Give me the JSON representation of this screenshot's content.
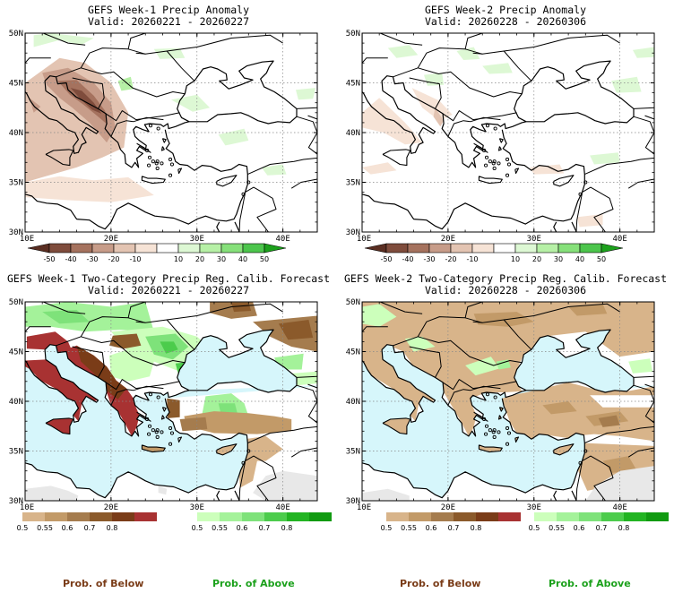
{
  "panels": [
    {
      "title": "GEFS Week-1 Precip Anomaly",
      "valid": "Valid: 20260221 - 20260227",
      "kind": "anomaly",
      "lat_labels": [
        "50N",
        "45N",
        "40N",
        "35N",
        "30N"
      ],
      "lon_labels": [
        "10E",
        "20E",
        "30E",
        "40E"
      ]
    },
    {
      "title": "GEFS Week-2 Precip Anomaly",
      "valid": "Valid: 20260228 - 20260306",
      "kind": "anomaly",
      "lat_labels": [
        "50N",
        "45N",
        "40N",
        "35N",
        "30N"
      ],
      "lon_labels": [
        "10E",
        "20E",
        "30E",
        "40E"
      ]
    },
    {
      "title": "GEFS Week-1 Two-Category Precip Reg. Calib. Forecast",
      "valid": "Valid: 20260221 - 20260227",
      "kind": "probability",
      "lat_labels": [
        "50N",
        "45N",
        "40N",
        "35N",
        "30N"
      ],
      "lon_labels": [
        "10E",
        "20E",
        "30E",
        "40E"
      ]
    },
    {
      "title": "GEFS Week-2 Two-Category Precip Reg. Calib. Forecast",
      "valid": "Valid: 20260228 - 20260306",
      "kind": "probability",
      "lat_labels": [
        "50N",
        "45N",
        "40N",
        "35N",
        "30N"
      ],
      "lon_labels": [
        "10E",
        "20E",
        "30E",
        "40E"
      ]
    }
  ],
  "anomaly_colorbar": {
    "labels": [
      "-50",
      "-40",
      "-30",
      "-20",
      "-10",
      "10",
      "20",
      "30",
      "40",
      "50"
    ],
    "colors": [
      "#5a2e22",
      "#7f4c3c",
      "#a5725e",
      "#c79c89",
      "#e3c4b2",
      "#f6e3d6",
      "#ffffff",
      "#ddf8d4",
      "#b6f0a6",
      "#86e07a",
      "#4cc54c",
      "#1ca11c"
    ]
  },
  "below_colorbar": {
    "labels": [
      "0.5",
      "0.55",
      "0.6",
      "0.7",
      "0.8"
    ],
    "colors": [
      "#d8b48a",
      "#c29a68",
      "#a57c4e",
      "#8b5a2b",
      "#7a3c18",
      "#a83232"
    ]
  },
  "above_colorbar": {
    "labels": [
      "0.5",
      "0.55",
      "0.6",
      "0.7",
      "0.8"
    ],
    "colors": [
      "#ccffbb",
      "#a4f29a",
      "#7ee27a",
      "#4ccc4c",
      "#22b422",
      "#119a11"
    ]
  },
  "captions": {
    "below": "Prob. of Below",
    "above": "Prob. of Above"
  },
  "colors": {
    "sea": "#d6f6fb",
    "no_data": "#e8e8e8",
    "coast": "#000000"
  }
}
